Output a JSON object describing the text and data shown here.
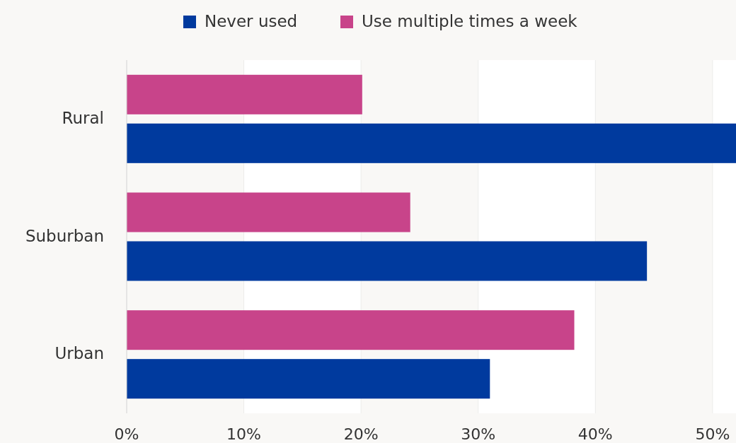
{
  "chart_data": {
    "type": "bar",
    "orientation": "horizontal",
    "categories": [
      "Rural",
      "Suburban",
      "Urban"
    ],
    "series": [
      {
        "name": "Never used",
        "color": "#003a9e",
        "values": [
          52,
          44.4,
          31
        ]
      },
      {
        "name": "Use multiple times a week",
        "color": "#c8448a",
        "values": [
          20.1,
          24.2,
          38.2
        ]
      }
    ],
    "xlim": [
      0,
      52
    ],
    "xticks": [
      {
        "value": 0,
        "label": "0%"
      },
      {
        "value": 10,
        "label": "10%"
      },
      {
        "value": 20,
        "label": "20%"
      },
      {
        "value": 30,
        "label": "30%"
      },
      {
        "value": 40,
        "label": "40%"
      },
      {
        "value": 50,
        "label": "50%"
      }
    ],
    "grid": "x",
    "legend": "top"
  }
}
